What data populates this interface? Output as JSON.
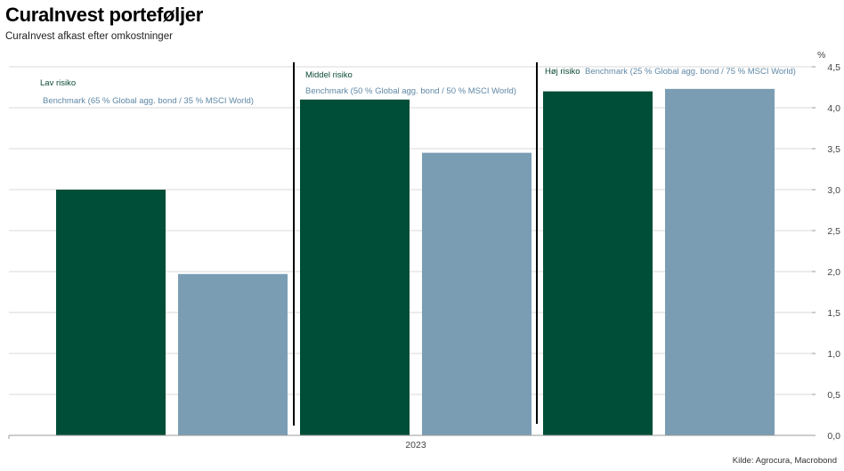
{
  "title": "CuraInvest porteføljer",
  "subtitle": "CuraInvest afkast efter omkostninger",
  "source": "Kilde: Agrocura, Macrobond",
  "colors": {
    "portfolio": "#004e37",
    "benchmark": "#7a9db3",
    "grid": "#d9d9d9"
  },
  "chart_data": {
    "type": "bar",
    "title": "CuraInvest porteføljer",
    "subtitle": "CuraInvest afkast efter omkostninger",
    "x_category": "2023",
    "unit": "%",
    "ylim": [
      0,
      4.5
    ],
    "y_ticks": [
      "0,0",
      "0,5",
      "1,0",
      "1,5",
      "2,0",
      "2,5",
      "3,0",
      "3,5",
      "4,0",
      "4,5"
    ],
    "grid": true,
    "groups": [
      {
        "label": "Lav risiko",
        "benchmark_label": "Benchmark (65 % Global agg. bond / 35 % MSCI World)",
        "portfolio_value": 3.0,
        "benchmark_value": 1.97
      },
      {
        "label": "Middel risiko",
        "benchmark_label": "Benchmark (50 % Global agg. bond / 50 % MSCI World)",
        "portfolio_value": 4.1,
        "benchmark_value": 3.45
      },
      {
        "label": "Høj risiko",
        "benchmark_label": "Benchmark (25 % Global agg. bond / 75 % MSCI World)",
        "portfolio_value": 4.2,
        "benchmark_value": 4.23
      }
    ]
  }
}
